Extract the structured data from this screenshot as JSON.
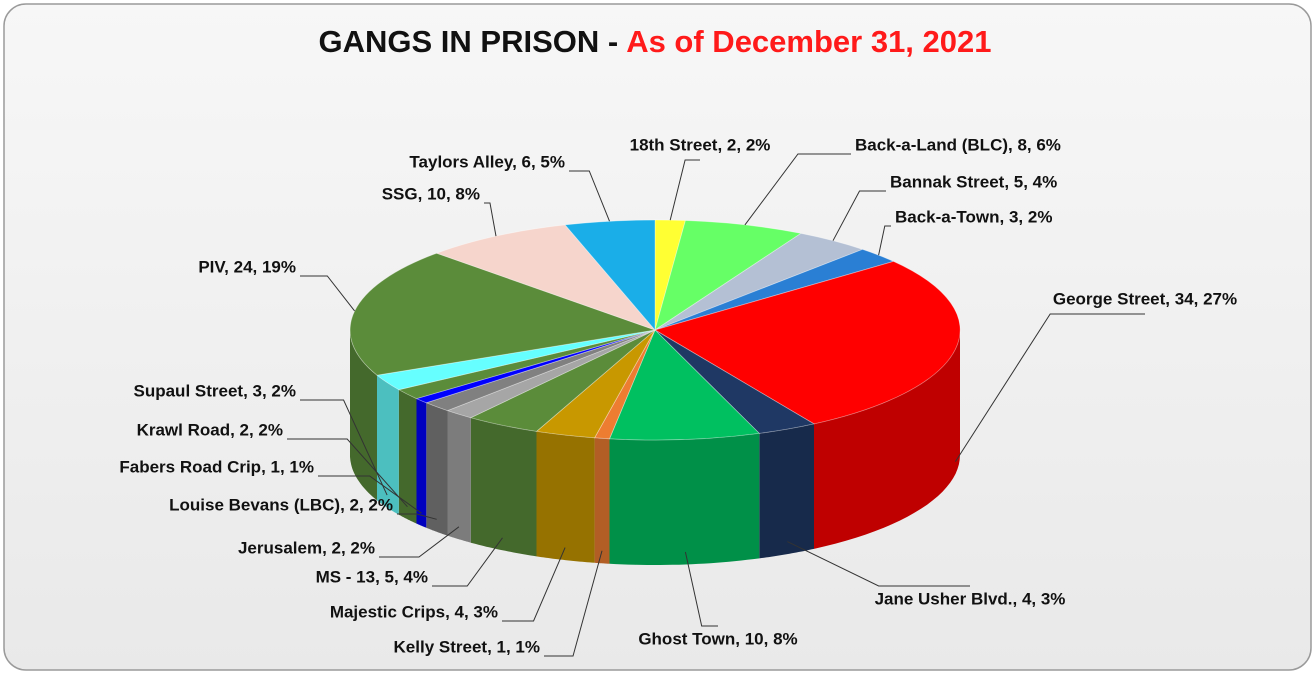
{
  "chart_data": {
    "type": "pie3d",
    "title": "GANGS IN PRISON -",
    "subtitle": "As of December 31, 2021",
    "values": [
      2,
      8,
      5,
      3,
      34,
      4,
      10,
      1,
      4,
      5,
      2,
      2,
      1,
      2,
      3,
      24,
      10,
      6
    ],
    "value_labels": [
      "18th Street, 2, 2%",
      "Back-a-Land (BLC), 8, 6%",
      "Bannak Street, 5, 4%",
      "Back-a-Town, 3, 2%",
      "George Street, 34, 27%",
      "Jane Usher Blvd., 4, 3%",
      "Ghost Town, 10, 8%",
      "Kelly Street, 1, 1%",
      "Majestic Crips, 4, 3%",
      "MS - 13, 5, 4%",
      "Jerusalem, 2, 2%",
      "Louise Bevans (LBC), 2, 2%",
      "Fabers Road Crip, 1, 1%",
      "Krawl Road, 2, 2%",
      "Supaul Street, 3, 2%",
      "PIV, 24, 19%",
      "SSG, 10, 8%",
      "Taylors Alley, 6, 5%"
    ],
    "colors": [
      "#ffff33",
      "#66ff66",
      "#b4c0d4",
      "#2a7fd4",
      "#ff0000",
      "#1f3864",
      "#00c060",
      "#ed7d31",
      "#c89800",
      "#5b8c3a",
      "#a6a6a6",
      "#808080",
      "#0000ff",
      "#5b8c3a",
      "#66ffff",
      "#5b8c3a",
      "#f6d5cc",
      "#1aaee8"
    ]
  }
}
